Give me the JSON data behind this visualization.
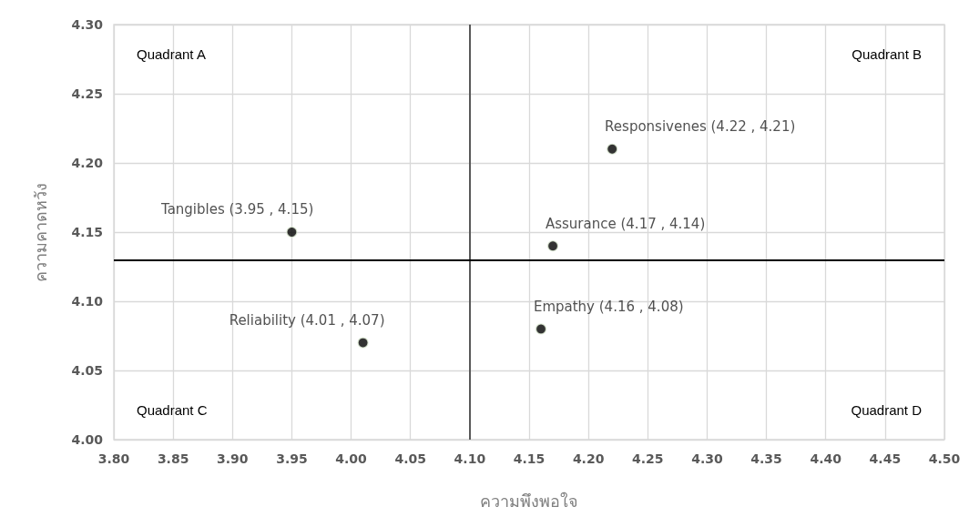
{
  "chart_data": {
    "type": "scatter",
    "xlabel": "ความพึงพอใจ",
    "ylabel": "ความคาดหวัง",
    "x": [
      3.95,
      4.01,
      4.17,
      4.22,
      4.16
    ],
    "values": [
      4.15,
      4.07,
      4.14,
      4.21,
      4.08
    ],
    "value_labels": [
      "Tangibles (3.95 , 4.15)",
      "Reliability (4.01 , 4.07)",
      "Assurance (4.17 , 4.14)",
      "Responsivenes (4.22 , 4.21)",
      "Empathy (4.16 , 4.08)"
    ],
    "color": "#000000",
    "marker": "circle",
    "xlim": [
      3.8,
      4.5
    ],
    "xticks": [
      {
        "value": 3.8,
        "label": "3.80"
      },
      {
        "value": 3.85,
        "label": "3.85"
      },
      {
        "value": 3.9,
        "label": "3.90"
      },
      {
        "value": 3.95,
        "label": "3.95"
      },
      {
        "value": 4.0,
        "label": "4.00"
      },
      {
        "value": 4.05,
        "label": "4.05"
      },
      {
        "value": 4.1,
        "label": "4.10"
      },
      {
        "value": 4.15,
        "label": "4.15"
      },
      {
        "value": 4.2,
        "label": "4.20"
      },
      {
        "value": 4.25,
        "label": "4.25"
      },
      {
        "value": 4.3,
        "label": "4.30"
      },
      {
        "value": 4.35,
        "label": "4.35"
      },
      {
        "value": 4.4,
        "label": "4.40"
      },
      {
        "value": 4.45,
        "label": "4.45"
      },
      {
        "value": 4.5,
        "label": "4.50"
      }
    ],
    "ylim": [
      4.0,
      4.3
    ],
    "yticks": [
      {
        "value": 4.0,
        "label": "4.00"
      },
      {
        "value": 4.05,
        "label": "4.05"
      },
      {
        "value": 4.1,
        "label": "4.10"
      },
      {
        "value": 4.15,
        "label": "4.15"
      },
      {
        "value": 4.2,
        "label": "4.20"
      },
      {
        "value": 4.25,
        "label": "4.25"
      },
      {
        "value": 4.3,
        "label": "4.30"
      }
    ],
    "grid": true,
    "ref_lines": [
      {
        "axis": "x",
        "value": 4.1,
        "color": "#595959"
      },
      {
        "axis": "y",
        "value": 4.13,
        "color": "#000000"
      }
    ],
    "annotations": [
      "Quadrant A",
      "Quadrant B",
      "Quadrant C",
      "Quadrant D"
    ]
  }
}
